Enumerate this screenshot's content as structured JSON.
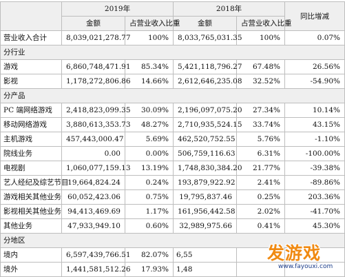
{
  "header": {
    "year_2019": "2019年",
    "year_2018": "2018年",
    "yoy": "同比增减",
    "amount": "金额",
    "share": "占营业收入比重"
  },
  "total": {
    "label": "营业收入合计",
    "a19": "8,039,021,278.77",
    "p19": "100%",
    "a18": "8,033,765,031.35",
    "p18": "100%",
    "yoy": "0.07%"
  },
  "sections": {
    "industry": "分行业",
    "product": "分产品",
    "region": "分地区"
  },
  "industry_rows": [
    {
      "label": "游戏",
      "a19": "6,860,748,471.91",
      "p19": "85.34%",
      "a18": "5,421,118,796.27",
      "p18": "67.48%",
      "yoy": "26.56%"
    },
    {
      "label": "影视",
      "a19": "1,178,272,806.86",
      "p19": "14.66%",
      "a18": "2,612,646,235.08",
      "p18": "32.52%",
      "yoy": "-54.90%"
    }
  ],
  "product_rows": [
    {
      "label": "PC 端网络游戏",
      "a19": "2,418,823,099.35",
      "p19": "30.09%",
      "a18": "2,196,097,075.20",
      "p18": "27.34%",
      "yoy": "10.14%"
    },
    {
      "label": "移动网络游戏",
      "a19": "3,880,613,353.73",
      "p19": "48.27%",
      "a18": "2,710,935,524.15",
      "p18": "33.74%",
      "yoy": "43.15%"
    },
    {
      "label": "主机游戏",
      "a19": "457,443,000.47",
      "p19": "5.69%",
      "a18": "462,520,752.55",
      "p18": "5.76%",
      "yoy": "-1.10%"
    },
    {
      "label": "院线业务",
      "a19": "0.00",
      "p19": "0.00%",
      "a18": "506,759,116.63",
      "p18": "6.31%",
      "yoy": "-100.00%"
    },
    {
      "label": "电视剧",
      "a19": "1,060,077,159.13",
      "p19": "13.19%",
      "a18": "1,748,830,384.20",
      "p18": "21.77%",
      "yoy": "-39.38%"
    },
    {
      "label": "艺人经纪及综艺节目",
      "a19": "19,664,824.24",
      "p19": "0.24%",
      "a18": "193,879,922.92",
      "p18": "2.41%",
      "yoy": "-89.86%"
    },
    {
      "label": "游戏相关其他业务",
      "a19": "60,052,423.06",
      "p19": "0.75%",
      "a18": "19,795,837.46",
      "p18": "0.25%",
      "yoy": "203.36%"
    },
    {
      "label": "影视相关其他业务",
      "a19": "94,413,469.69",
      "p19": "1.17%",
      "a18": "161,956,442.58",
      "p18": "2.02%",
      "yoy": "-41.70%"
    },
    {
      "label": "其他业务",
      "a19": "47,933,949.10",
      "p19": "0.60%",
      "a18": "32,989,975.66",
      "p18": "0.41%",
      "yoy": "45.30%"
    }
  ],
  "region_rows": [
    {
      "label": "境内",
      "a19": "6,597,439,766.51",
      "p19": "82.07%",
      "a18": "6,55",
      "p18": "",
      "yoy": ""
    },
    {
      "label": "境外",
      "a19": "1,441,581,512.26",
      "p19": "17.93%",
      "a18": "1,48",
      "p18": "",
      "yoy": ""
    }
  ],
  "watermark": {
    "brand": "发游戏",
    "url": "www.fayouxi.com",
    "color": "#f08a12"
  }
}
